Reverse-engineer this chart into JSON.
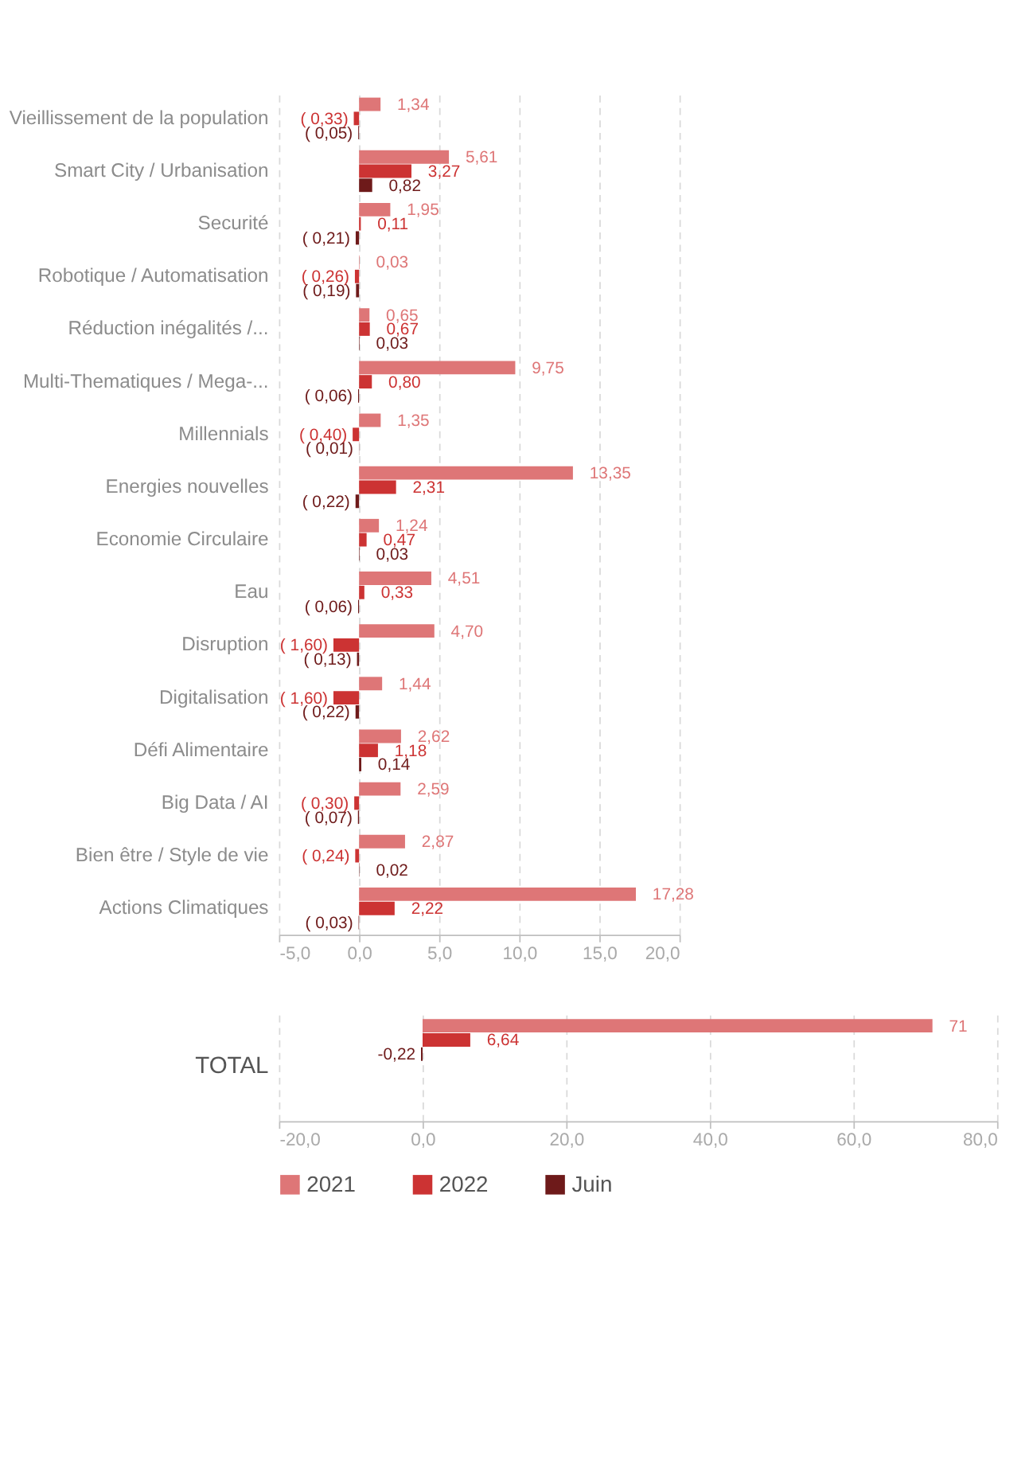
{
  "chart_data": [
    {
      "type": "bar",
      "orientation": "horizontal",
      "categories": [
        "Vieillissement de la population",
        "Smart City / Urbanisation",
        "Securité",
        "Robotique / Automatisation",
        "Réduction inégalités /...",
        "Multi-Thematiques / Mega-...",
        "Millennials",
        "Energies nouvelles",
        "Economie Circulaire",
        "Eau",
        "Disruption",
        "Digitalisation",
        "Défi Alimentaire",
        "Big Data / AI",
        "Bien être / Style de vie",
        "Actions Climatiques"
      ],
      "series": [
        {
          "color": "#de7677",
          "values": [
            1.34,
            5.61,
            1.95,
            0.03,
            0.65,
            9.75,
            1.35,
            13.35,
            1.24,
            4.51,
            4.7,
            1.44,
            2.62,
            2.59,
            2.87,
            17.28
          ],
          "value_labels": [
            "1,34",
            "5,61",
            "1,95",
            "0,03",
            "0,65",
            "9,75",
            "1,35",
            "13,35",
            "1,24",
            "4,51",
            "4,70",
            "1,44",
            "2,62",
            "2,59",
            "2,87",
            "17,28"
          ]
        },
        {
          "color": "#cc3333",
          "values": [
            -0.33,
            3.27,
            0.11,
            -0.26,
            0.67,
            0.8,
            -0.4,
            2.31,
            0.47,
            0.33,
            -1.6,
            -1.6,
            1.18,
            -0.3,
            -0.24,
            2.22
          ],
          "value_labels": [
            "( 0,33)",
            "3,27",
            "0,11",
            "( 0,26)",
            "0,67",
            "0,80",
            "( 0,40)",
            "2,31",
            "0,47",
            "0,33",
            "( 1,60)",
            "( 1,60)",
            "1,18",
            "( 0,30)",
            "( 0,24)",
            "2,22"
          ]
        },
        {
          "color": "#6e1a1a",
          "values": [
            -0.05,
            0.82,
            -0.21,
            -0.19,
            0.03,
            -0.06,
            -0.01,
            -0.22,
            0.03,
            -0.06,
            -0.13,
            -0.22,
            0.14,
            -0.07,
            0.02,
            -0.03
          ],
          "value_labels": [
            "( 0,05)",
            "0,82",
            "( 0,21)",
            "( 0,19)",
            "0,03",
            "( 0,06)",
            "( 0,01)",
            "( 0,22)",
            "0,03",
            "( 0,06)",
            "( 0,13)",
            "( 0,22)",
            "0,14",
            "( 0,07)",
            "0,02",
            "( 0,03)"
          ]
        }
      ],
      "xlim": [
        -5,
        20
      ],
      "xticks": [
        {
          "value": -5,
          "label": "-5,0"
        },
        {
          "value": 0,
          "label": "0,0"
        },
        {
          "value": 5,
          "label": "5,0"
        },
        {
          "value": 10,
          "label": "10,0"
        },
        {
          "value": 15,
          "label": "15,0"
        },
        {
          "value": 20,
          "label": "20,0"
        }
      ],
      "grid": "x"
    },
    {
      "type": "bar",
      "orientation": "horizontal",
      "categories": [
        "TOTAL"
      ],
      "series": [
        {
          "name": "2021",
          "color": "#de7677",
          "values": [
            71
          ],
          "value_labels": [
            "71"
          ]
        },
        {
          "name": "2022",
          "color": "#cc3333",
          "values": [
            6.64
          ],
          "value_labels": [
            "6,64"
          ]
        },
        {
          "name": "Juin",
          "color": "#6e1a1a",
          "values": [
            -0.22
          ],
          "value_labels": [
            "-0,22"
          ]
        }
      ],
      "xlim": [
        -20,
        80
      ],
      "xticks": [
        {
          "value": -20,
          "label": "-20,0"
        },
        {
          "value": 0,
          "label": "0,0"
        },
        {
          "value": 20,
          "label": "20,0"
        },
        {
          "value": 40,
          "label": "40,0"
        },
        {
          "value": 60,
          "label": "60,0"
        },
        {
          "value": 80,
          "label": "80,0"
        }
      ],
      "grid": "x",
      "legend": "bottom"
    }
  ]
}
